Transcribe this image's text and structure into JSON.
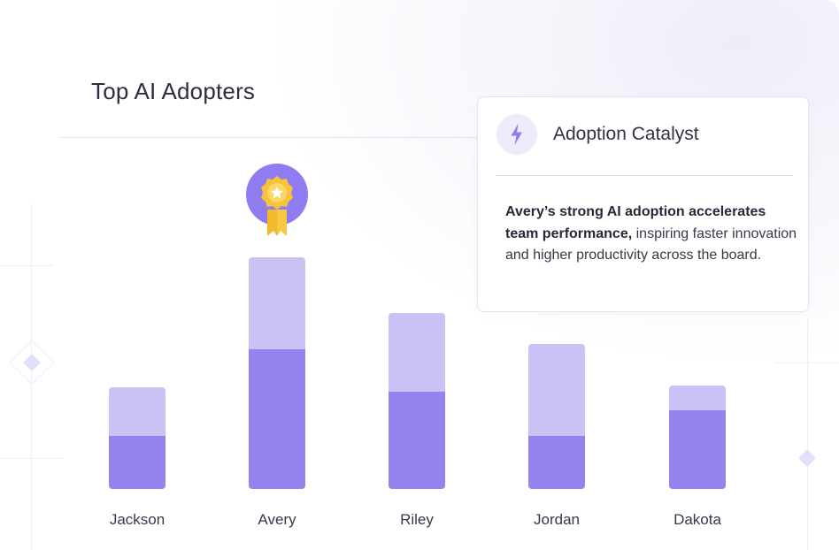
{
  "title": "Top AI Adopters",
  "colors": {
    "bar_light": "#c8c2f5",
    "bar_dark": "#9484ee",
    "accent": "#8f7cf0",
    "medal": "#f5c53a"
  },
  "highlight": {
    "icon": "lightning-icon",
    "title": "Adoption Catalyst",
    "body_bold": "Avery’s strong AI adoption accelerates team performance,",
    "body_rest": " inspiring faster innovation and higher productivity across the board."
  },
  "chart_data": {
    "type": "bar",
    "stacked": true,
    "title": "Top AI Adopters",
    "categories": [
      "Jackson",
      "Avery",
      "Riley",
      "Jordan",
      "Dakota"
    ],
    "series": [
      {
        "values": [
          60,
          158,
          110,
          60,
          89
        ]
      },
      {
        "values": [
          55,
          104,
          89,
          104,
          28
        ]
      }
    ],
    "ylim": [
      0,
      262
    ],
    "highlighted_category": "Avery",
    "grid": false,
    "legend": "none"
  }
}
